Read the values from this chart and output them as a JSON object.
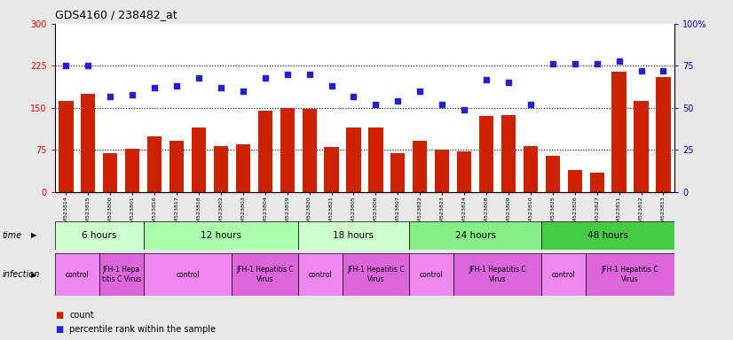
{
  "title": "GDS4160 / 238482_at",
  "samples": [
    "GSM523814",
    "GSM523815",
    "GSM523800",
    "GSM523801",
    "GSM523816",
    "GSM523817",
    "GSM523818",
    "GSM523802",
    "GSM523803",
    "GSM523804",
    "GSM523819",
    "GSM523820",
    "GSM523821",
    "GSM523805",
    "GSM523806",
    "GSM523807",
    "GSM523822",
    "GSM523823",
    "GSM523824",
    "GSM523808",
    "GSM523809",
    "GSM523810",
    "GSM523825",
    "GSM523826",
    "GSM523827",
    "GSM523811",
    "GSM523812",
    "GSM523813"
  ],
  "counts": [
    162,
    175,
    70,
    78,
    100,
    92,
    115,
    82,
    85,
    145,
    150,
    148,
    80,
    115,
    115,
    70,
    92,
    75,
    73,
    135,
    138,
    82,
    65,
    40,
    35,
    215,
    162,
    205
  ],
  "percentile": [
    75,
    75,
    57,
    58,
    62,
    63,
    68,
    62,
    60,
    68,
    70,
    70,
    63,
    57,
    52,
    54,
    60,
    52,
    49,
    67,
    65,
    52,
    76,
    76,
    76,
    78,
    72,
    72
  ],
  "bar_color": "#cc2200",
  "dot_color": "#2222cc",
  "left_ylim": [
    0,
    300
  ],
  "right_ylim": [
    0,
    100
  ],
  "left_yticks": [
    0,
    75,
    150,
    225,
    300
  ],
  "right_yticks": [
    0,
    25,
    50,
    75,
    100
  ],
  "right_yticklabels": [
    "0",
    "25",
    "50",
    "75",
    "100%"
  ],
  "grid_values": [
    75,
    150,
    225
  ],
  "time_groups": [
    {
      "label": "6 hours",
      "start": 0,
      "end": 4,
      "color": "#ccffcc"
    },
    {
      "label": "12 hours",
      "start": 4,
      "end": 11,
      "color": "#aaffaa"
    },
    {
      "label": "18 hours",
      "start": 11,
      "end": 16,
      "color": "#ccffcc"
    },
    {
      "label": "24 hours",
      "start": 16,
      "end": 22,
      "color": "#88ee88"
    },
    {
      "label": "48 hours",
      "start": 22,
      "end": 28,
      "color": "#44cc44"
    }
  ],
  "infection_groups": [
    {
      "label": "control",
      "start": 0,
      "end": 2,
      "color": "#ee88ee"
    },
    {
      "label": "JFH-1 Hepa\ntitis C Virus",
      "start": 2,
      "end": 4,
      "color": "#dd66dd"
    },
    {
      "label": "control",
      "start": 4,
      "end": 8,
      "color": "#ee88ee"
    },
    {
      "label": "JFH-1 Hepatitis C\nVirus",
      "start": 8,
      "end": 11,
      "color": "#dd66dd"
    },
    {
      "label": "control",
      "start": 11,
      "end": 13,
      "color": "#ee88ee"
    },
    {
      "label": "JFH-1 Hepatitis C\nVirus",
      "start": 13,
      "end": 16,
      "color": "#dd66dd"
    },
    {
      "label": "control",
      "start": 16,
      "end": 18,
      "color": "#ee88ee"
    },
    {
      "label": "JFH-1 Hepatitis C\nVirus",
      "start": 18,
      "end": 22,
      "color": "#dd66dd"
    },
    {
      "label": "control",
      "start": 22,
      "end": 24,
      "color": "#ee88ee"
    },
    {
      "label": "JFH-1 Hepatitis C\nVirus",
      "start": 24,
      "end": 28,
      "color": "#dd66dd"
    }
  ],
  "bg_color": "#e8e8e8",
  "plot_bg": "#ffffff",
  "xticklabel_bg": "#d8d8d8"
}
